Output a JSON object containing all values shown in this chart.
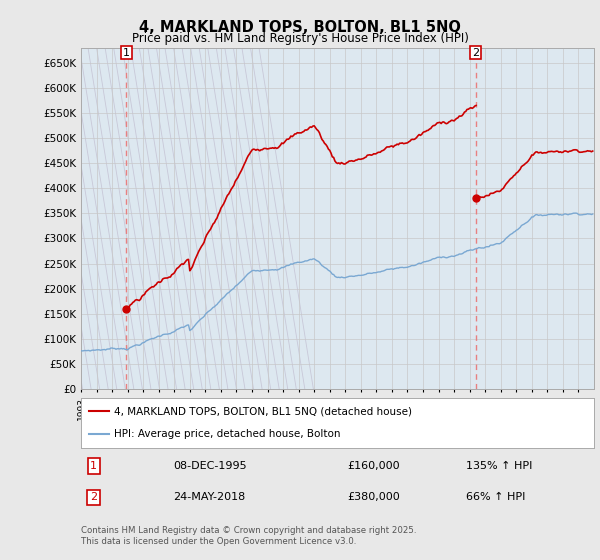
{
  "title1": "4, MARKLAND TOPS, BOLTON, BL1 5NQ",
  "title2": "Price paid vs. HM Land Registry's House Price Index (HPI)",
  "ylim": [
    0,
    680000
  ],
  "yticks": [
    0,
    50000,
    100000,
    150000,
    200000,
    250000,
    300000,
    350000,
    400000,
    450000,
    500000,
    550000,
    600000,
    650000
  ],
  "hpi_color": "#7aa8d2",
  "price_color": "#cc0000",
  "vline_color": "#e88080",
  "grid_color": "#c8c8c8",
  "hatch_color": "#c8c8d8",
  "background_color": "#e8e8e8",
  "plot_bg_color": "#dde8f0",
  "sale1_year": 1995.92,
  "sale1_price": 160000,
  "sale2_year": 2018.39,
  "sale2_price": 380000,
  "legend_label_red": "4, MARKLAND TOPS, BOLTON, BL1 5NQ (detached house)",
  "legend_label_blue": "HPI: Average price, detached house, Bolton",
  "sale1_date_str": "08-DEC-1995",
  "sale1_hpi_pct": "135% ↑ HPI",
  "sale2_date_str": "24-MAY-2018",
  "sale2_hpi_pct": "66% ↑ HPI",
  "footnote": "Contains HM Land Registry data © Crown copyright and database right 2025.\nThis data is licensed under the Open Government Licence v3.0.",
  "xmin": 1993,
  "xmax": 2026
}
